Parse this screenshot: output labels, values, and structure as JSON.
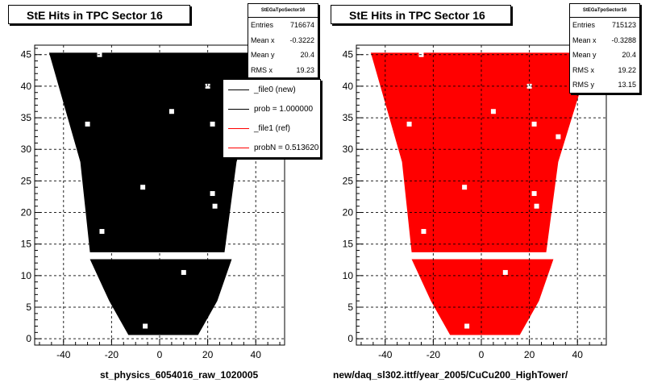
{
  "chart_data": [
    {
      "type": "scatter",
      "title": "StE Hits in TPC Sector 16",
      "color": "#000000",
      "xlim": [
        -52,
        52
      ],
      "ylim": [
        -1,
        46.5
      ],
      "xticks": [
        -40,
        -20,
        0,
        20,
        40
      ],
      "yticks": [
        0,
        5,
        10,
        15,
        20,
        25,
        30,
        35,
        40,
        45
      ],
      "grid": true,
      "stats": {
        "name": "StEGaTpoSector16",
        "rows": [
          {
            "label": "Entries",
            "value": "716674"
          },
          {
            "label": "Mean x",
            "value": "-0.3222"
          },
          {
            "label": "Mean y",
            "value": "20.4"
          },
          {
            "label": "RMS x",
            "value": "19.23"
          }
        ]
      },
      "legend": [
        {
          "label": "_file0 (new)",
          "color": "#000000"
        },
        {
          "label": "prob = 1.000000",
          "color": "#000000"
        },
        {
          "label": "_file1 (ref)",
          "color": "#ff0000"
        },
        {
          "label": "probN = 0.513620",
          "color": "#ff0000"
        }
      ],
      "xlabel": "st_physics_6054016_raw_1020005"
    },
    {
      "type": "scatter",
      "title": "StE Hits in TPC Sector 16",
      "color": "#ff0000",
      "xlim": [
        -52,
        52
      ],
      "ylim": [
        -1,
        46.5
      ],
      "xticks": [
        -40,
        -20,
        0,
        20,
        40
      ],
      "yticks": [
        0,
        5,
        10,
        15,
        20,
        25,
        30,
        35,
        40,
        45
      ],
      "grid": true,
      "stats": {
        "name": "StEGaTpoSector16",
        "rows": [
          {
            "label": "Entries",
            "value": "715123"
          },
          {
            "label": "Mean x",
            "value": "-0.3288"
          },
          {
            "label": "Mean y",
            "value": "20.4"
          },
          {
            "label": "RMS x",
            "value": "19.22"
          },
          {
            "label": "RMS y",
            "value": "13.15"
          }
        ]
      },
      "xlabel": "new/daq_sl302.ittf/year_2005/CuCu200_HighTower/"
    }
  ]
}
